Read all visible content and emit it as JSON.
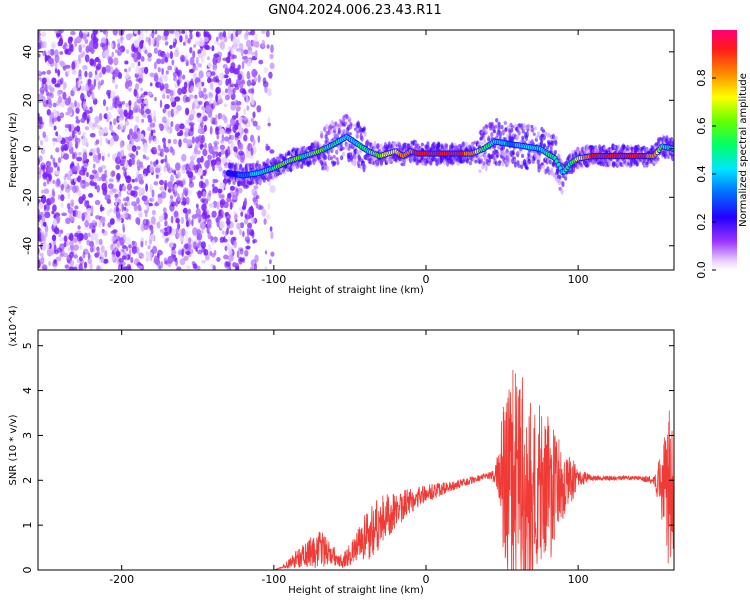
{
  "title": "GN04.2024.006.23.43.R11",
  "colors": {
    "snr_line": "#f03a35",
    "ridge_path": "#ff2a2a",
    "cloud_dense": "#6a00ff",
    "cloud_light": "#d9b8ff"
  },
  "chart_data": [
    {
      "type": "heatmap",
      "name": "spectrogram",
      "xlabel": "Height of straight line (km)",
      "ylabel": "Frequency (Hz)",
      "xlim": [
        -255,
        163
      ],
      "ylim": [
        -50,
        49
      ],
      "xticks": [
        -200,
        -100,
        0,
        100
      ],
      "yticks": [
        -40,
        -20,
        0,
        20,
        40
      ],
      "colorbar": {
        "label": "Normalized spectral amplitude",
        "range": [
          0,
          1
        ],
        "ticks": [
          0.0,
          0.2,
          0.4,
          0.6,
          0.8
        ]
      },
      "noise_region_x": [
        -255,
        -112
      ],
      "ridge": {
        "x": [
          -130,
          -120,
          -110,
          -100,
          -90,
          -80,
          -70,
          -60,
          -52,
          -45,
          -38,
          -30,
          -25,
          -20,
          -15,
          -10,
          -5,
          0,
          10,
          20,
          30,
          38,
          45,
          55,
          65,
          75,
          85,
          90,
          95,
          100,
          110,
          120,
          130,
          140,
          150,
          155,
          163
        ],
        "y": [
          -10,
          -11,
          -10,
          -8,
          -5,
          -3,
          -1,
          2,
          5,
          2,
          -1,
          -3,
          -2,
          -1,
          -3,
          -1,
          -2,
          -2,
          -2,
          -2,
          -2,
          0,
          3,
          2,
          1,
          0,
          -4,
          -10,
          -6,
          -4,
          -3,
          -3,
          -3,
          -3,
          -3,
          1,
          0
        ],
        "amplitude": [
          0.3,
          0.35,
          0.5,
          0.6,
          0.7,
          0.6,
          0.65,
          0.55,
          0.45,
          0.5,
          0.6,
          0.7,
          0.75,
          0.8,
          0.85,
          0.9,
          0.95,
          0.95,
          0.95,
          0.95,
          0.9,
          0.6,
          0.5,
          0.4,
          0.45,
          0.5,
          0.55,
          0.5,
          0.6,
          0.75,
          0.95,
          0.95,
          0.95,
          0.95,
          0.9,
          0.6,
          0.5
        ]
      }
    },
    {
      "type": "line",
      "name": "snr",
      "xlabel": "Height of straight line (km)",
      "ylabel": "SNR (10 * v/v)",
      "y_multiplier": "(x10^4)",
      "xlim": [
        -255,
        163
      ],
      "ylim": [
        0,
        5.35
      ],
      "xticks": [
        -200,
        -100,
        0,
        100
      ],
      "yticks": [
        0,
        1,
        2,
        3,
        4,
        5
      ],
      "series": [
        {
          "envelope": {
            "x": [
              -255,
              -100,
              -95,
              -85,
              -75,
              -70,
              -65,
              -60,
              -55,
              -50,
              -45,
              -40,
              -35,
              -30,
              -25,
              -20,
              -15,
              -10,
              -5,
              0,
              10,
              20,
              30,
              40,
              45,
              48,
              50,
              55,
              60,
              65,
              70,
              75,
              80,
              85,
              90,
              95,
              100,
              110,
              120,
              130,
              140,
              150,
              155,
              158,
              160,
              163
            ],
            "mid": [
              0,
              0,
              0.05,
              0.25,
              0.4,
              0.45,
              0.4,
              0.3,
              0.2,
              0.35,
              0.5,
              0.7,
              0.9,
              1.1,
              1.2,
              1.3,
              1.45,
              1.55,
              1.65,
              1.7,
              1.8,
              1.9,
              2.0,
              2.1,
              2.1,
              2.1,
              2.05,
              2.0,
              1.95,
              1.9,
              1.85,
              1.8,
              1.75,
              1.8,
              1.9,
              2.0,
              2.05,
              2.05,
              2.05,
              2.05,
              2.05,
              2.0,
              1.9,
              1.8,
              1.8,
              1.8
            ],
            "amp": [
              0,
              0,
              0.02,
              0.2,
              0.35,
              0.45,
              0.35,
              0.2,
              0.15,
              0.25,
              0.4,
              0.55,
              0.7,
              0.6,
              0.5,
              0.45,
              0.35,
              0.3,
              0.25,
              0.2,
              0.15,
              0.1,
              0.08,
              0.08,
              0.15,
              0.6,
              1.5,
              2.4,
              2.6,
              2.3,
              2.0,
              1.9,
              1.7,
              1.3,
              1.0,
              0.6,
              0.2,
              0.06,
              0.05,
              0.05,
              0.05,
              0.1,
              0.8,
              1.6,
              1.8,
              1.6
            ]
          }
        }
      ]
    }
  ]
}
